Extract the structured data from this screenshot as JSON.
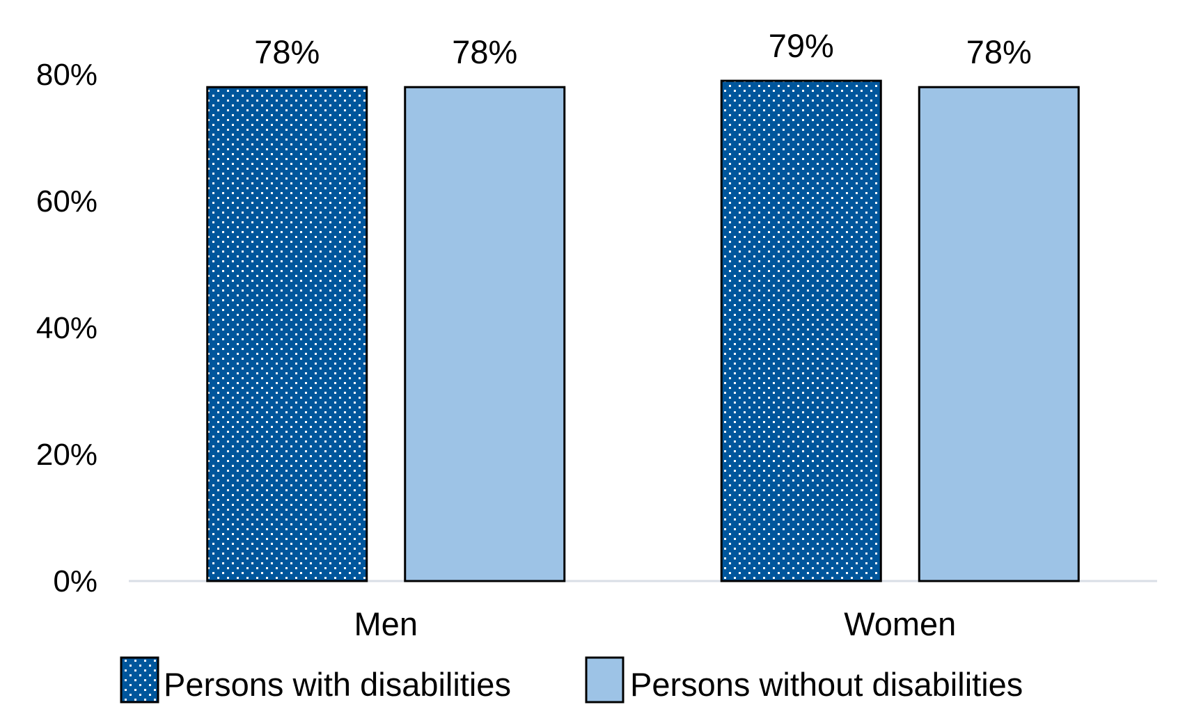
{
  "chart_data": {
    "type": "bar",
    "title": "",
    "xlabel": "",
    "ylabel": "",
    "categories": [
      "Men",
      "Women"
    ],
    "series": [
      {
        "name": "Persons with disabilities",
        "values": [
          78,
          79
        ],
        "labels": [
          "78%",
          "79%"
        ],
        "color": "#00569C",
        "pattern": "white-dots"
      },
      {
        "name": "Persons without disabilities",
        "values": [
          78,
          78
        ],
        "labels": [
          "78%",
          "78%"
        ],
        "color": "#9DC3E6",
        "pattern": "none"
      }
    ],
    "ylim": [
      0,
      80
    ],
    "yticks": [
      0,
      20,
      40,
      60,
      80
    ],
    "ytick_labels": [
      "0%",
      "20%",
      "40%",
      "60%",
      "80%"
    ],
    "grid": false,
    "data_labels": true,
    "legend": {
      "position": "bottom"
    },
    "colors": {
      "axis_line": "#D9DEE6",
      "bar_border": "#000000",
      "dot": "#FFFFFF"
    }
  }
}
